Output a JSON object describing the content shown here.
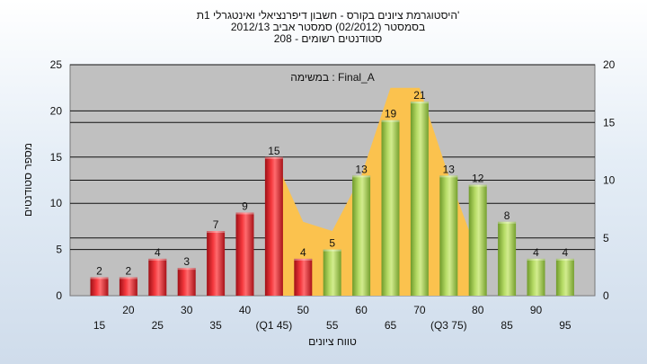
{
  "chart_data": {
    "type": "bar",
    "title_lines": [
      "היסטוגרמת ציונים בקורס - חשבון דיפרנציאלי ואינטגרלי 1ת'",
      "בסמסטר  (02/2012)  סמסטר אביב 2012/13",
      "208 - סטודנטים רשומים"
    ],
    "annotation": "Final_A : במשימה",
    "xlabel": "טווח ציונים",
    "ylabel": "מספר סטודנטים",
    "categories": [
      "15",
      "20",
      "25",
      "30",
      "35",
      "40",
      "(Q1 45)",
      "50",
      "55",
      "60",
      "65",
      "70",
      "(Q3 75)",
      "80",
      "85",
      "90",
      "95"
    ],
    "values": [
      2,
      2,
      4,
      3,
      7,
      9,
      15,
      4,
      5,
      13,
      19,
      21,
      13,
      12,
      8,
      4,
      4
    ],
    "bar_colors": [
      "red",
      "red",
      "red",
      "red",
      "red",
      "red",
      "red",
      "red",
      "green",
      "green",
      "green",
      "green",
      "green",
      "green",
      "green",
      "green",
      "green"
    ],
    "ylim_left": [
      0,
      25
    ],
    "yticks_left": [
      0,
      5,
      10,
      15,
      20,
      25
    ],
    "ylim_right": [
      0,
      20
    ],
    "yticks_right": [
      0,
      5,
      10,
      15,
      20
    ],
    "area_series": {
      "name": "",
      "x_categories": [
        "(Q1 45)",
        "50",
        "55",
        "60",
        "65",
        "70",
        "(Q3 75)",
        "80"
      ],
      "values": [
        15,
        8,
        7,
        13,
        22.5,
        22.5,
        13,
        4.5
      ]
    },
    "grid": "horizontal",
    "colors": {
      "red_bar": "#e8232a",
      "green_bar": "#a6cf55",
      "area_fill": "#fbc24e",
      "plot_bg": "#c0c0c0",
      "grid": "#111111"
    }
  }
}
